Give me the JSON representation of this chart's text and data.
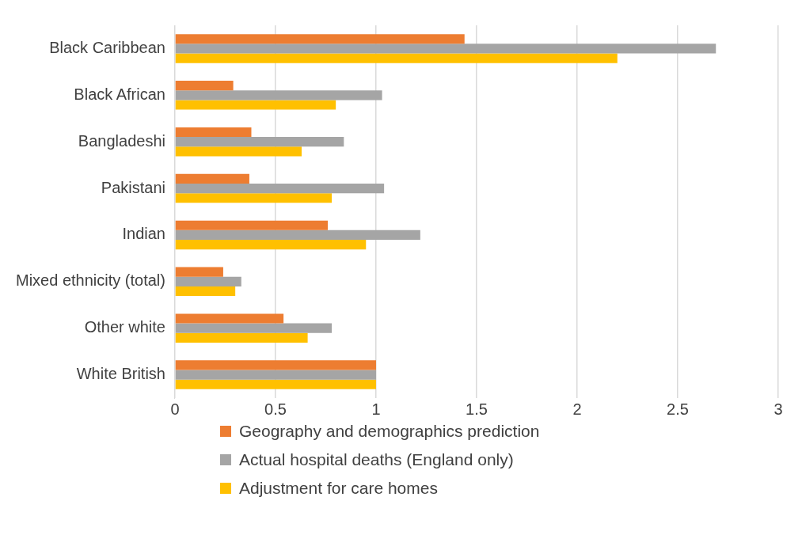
{
  "chart_data": {
    "type": "bar",
    "orientation": "horizontal",
    "categories": [
      "Black Caribbean",
      "Black African",
      "Bangladeshi",
      "Pakistani",
      "Indian",
      "Mixed ethnicity (total)",
      "Other white",
      "White British"
    ],
    "series": [
      {
        "name": "Geography and demographics prediction",
        "color": "#ed7d31",
        "values": [
          1.44,
          0.29,
          0.38,
          0.37,
          0.76,
          0.24,
          0.54,
          1
        ]
      },
      {
        "name": "Actual hospital deaths (England only)",
        "color": "#a5a5a5",
        "values": [
          2.69,
          1.03,
          0.84,
          1.04,
          1.22,
          0.33,
          0.78,
          1
        ]
      },
      {
        "name": "Adjustment for care homes",
        "color": "#ffc000",
        "values": [
          2.2,
          0.8,
          0.63,
          0.78,
          0.95,
          0.3,
          0.66,
          1
        ]
      }
    ],
    "xlim": [
      0,
      3
    ],
    "xticks": [
      0,
      0.5,
      1,
      1.5,
      2,
      2.5,
      3
    ],
    "grid": "x",
    "legend": "bottom"
  }
}
